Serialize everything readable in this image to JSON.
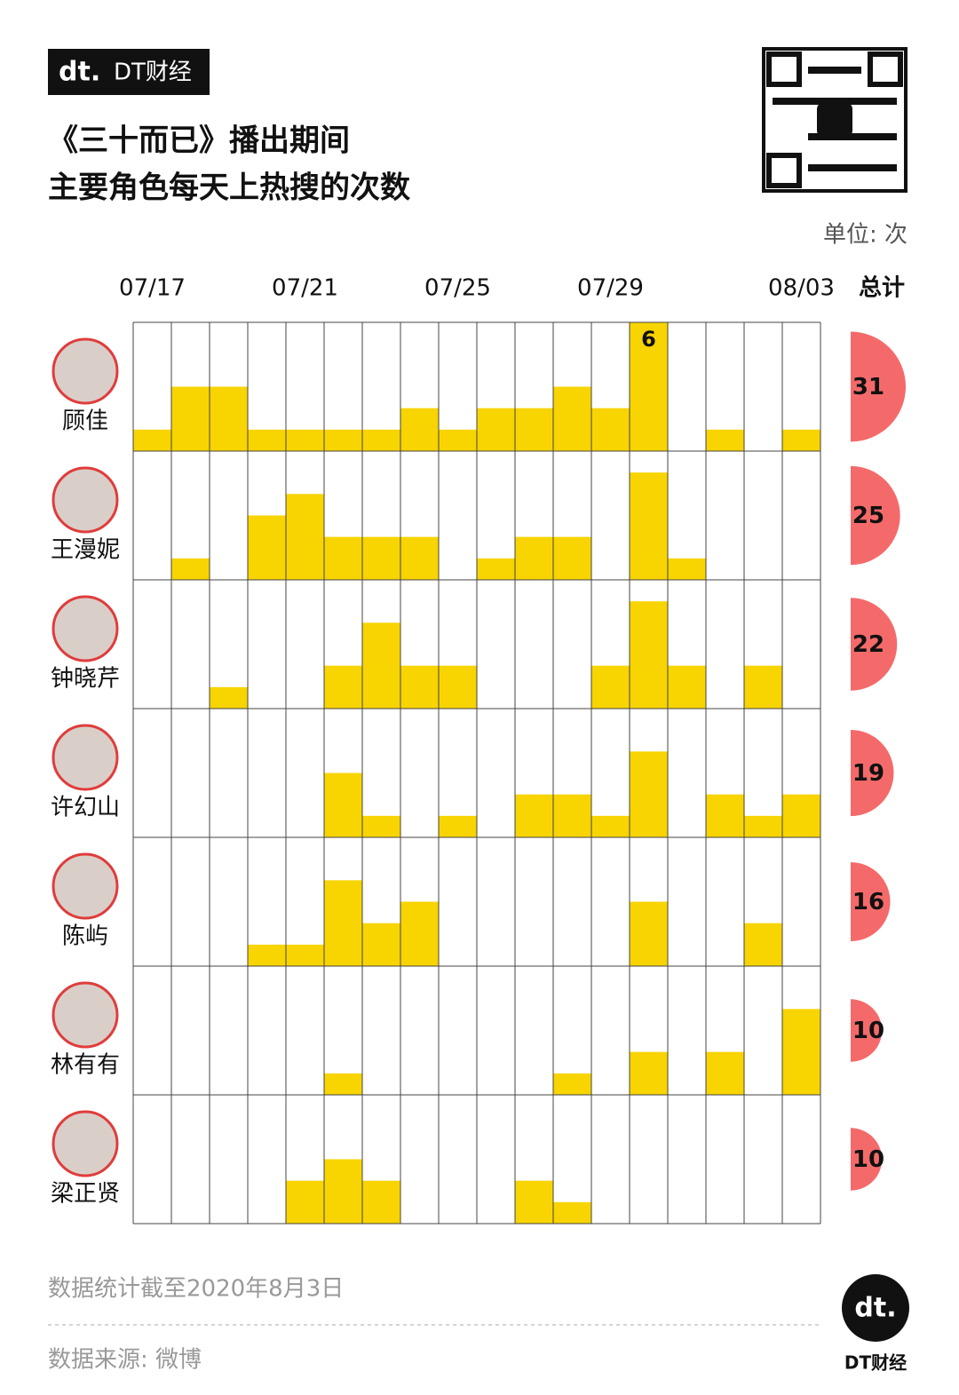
{
  "brand": "DT财经",
  "chart_data": {
    "type": "bar",
    "title": "《三十而已》播出期间",
    "subtitle": "主要角色每天上热搜的次数",
    "unit_label": "单位: 次",
    "total_label": "总计",
    "categories": [
      "07/17",
      null,
      null,
      null,
      "07/21",
      null,
      null,
      null,
      "07/25",
      null,
      null,
      null,
      "07/29",
      null,
      null,
      null,
      null,
      "08/03"
    ],
    "ylim": [
      0,
      6
    ],
    "color": "#f8d400",
    "total_color": "#f46a6a",
    "series": [
      {
        "name": "顾佳",
        "values": [
          1,
          3,
          3,
          1,
          1,
          1,
          1,
          2,
          1,
          2,
          2,
          3,
          2,
          6,
          0,
          1,
          0,
          1
        ],
        "total": 31
      },
      {
        "name": "王漫妮",
        "values": [
          0,
          1,
          0,
          3,
          4,
          2,
          2,
          2,
          0,
          1,
          2,
          2,
          0,
          5,
          1,
          0,
          0,
          0
        ],
        "total": 25
      },
      {
        "name": "钟晓芹",
        "values": [
          0,
          0,
          1,
          0,
          0,
          2,
          4,
          2,
          2,
          0,
          0,
          0,
          2,
          5,
          2,
          0,
          2,
          0
        ],
        "total": 22
      },
      {
        "name": "许幻山",
        "values": [
          0,
          0,
          0,
          0,
          0,
          3,
          1,
          0,
          1,
          0,
          2,
          2,
          1,
          4,
          0,
          2,
          1,
          2
        ],
        "total": 19
      },
      {
        "name": "陈屿",
        "values": [
          0,
          0,
          0,
          1,
          1,
          4,
          2,
          3,
          0,
          0,
          0,
          0,
          0,
          3,
          0,
          0,
          2,
          0
        ],
        "total": 16
      },
      {
        "name": "林有有",
        "values": [
          0,
          0,
          0,
          0,
          0,
          1,
          0,
          0,
          0,
          0,
          0,
          1,
          0,
          2,
          0,
          2,
          0,
          4
        ],
        "total": 10
      },
      {
        "name": "梁正贤",
        "values": [
          0,
          0,
          0,
          0,
          2,
          3,
          2,
          0,
          0,
          0,
          2,
          1,
          0,
          0,
          0,
          0,
          0,
          0
        ],
        "total": 10
      }
    ],
    "note": "数据统计截至2020年8月3日",
    "source": "数据来源: 微博"
  }
}
